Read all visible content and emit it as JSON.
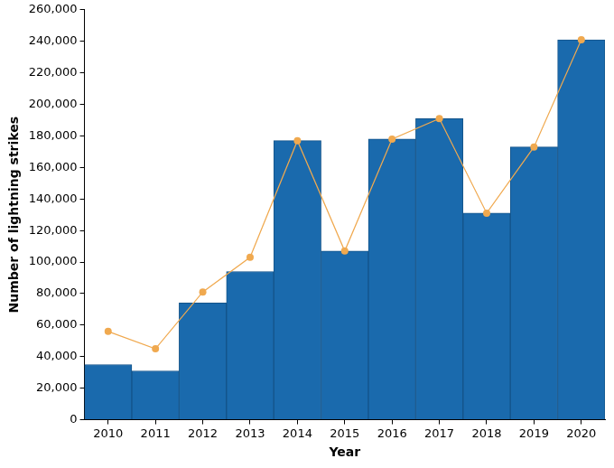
{
  "chart_data": {
    "type": "bar",
    "x_label": "Year",
    "y_label": "Number of lightning strikes",
    "categories": [
      "2010",
      "2011",
      "2012",
      "2013",
      "2014",
      "2015",
      "2016",
      "2017",
      "2018",
      "2019",
      "2020"
    ],
    "series": [
      {
        "type": "bar",
        "color": "#1a6aad",
        "values": [
          35000,
          31000,
          74000,
          94000,
          177000,
          107000,
          178000,
          191000,
          131000,
          173000,
          241000
        ]
      },
      {
        "type": "line",
        "color": "#f0a94f",
        "marker": "circle",
        "line_style": "solid",
        "values": [
          56000,
          45000,
          81000,
          103000,
          177000,
          107000,
          178000,
          191000,
          131000,
          173000,
          241000
        ]
      }
    ],
    "ylim": [
      0,
      260000
    ],
    "yticks": [
      0,
      {
        "value": 20000,
        "label": "20,000"
      },
      {
        "value": 40000,
        "label": "40,000"
      },
      {
        "value": 60000,
        "label": "60,000"
      },
      {
        "value": 80000,
        "label": "80,000"
      },
      {
        "value": 100000,
        "label": "100,000"
      },
      {
        "value": 120000,
        "label": "120,000"
      },
      {
        "value": 140000,
        "label": "140,000"
      },
      {
        "value": 160000,
        "label": "160,000"
      },
      {
        "value": 180000,
        "label": "180,000"
      },
      {
        "value": 200000,
        "label": "200,000"
      },
      {
        "value": 220000,
        "label": "220,000"
      },
      {
        "value": 240000,
        "label": "240,000"
      },
      {
        "value": 260000,
        "label": "260,000"
      }
    ],
    "grid": false
  }
}
